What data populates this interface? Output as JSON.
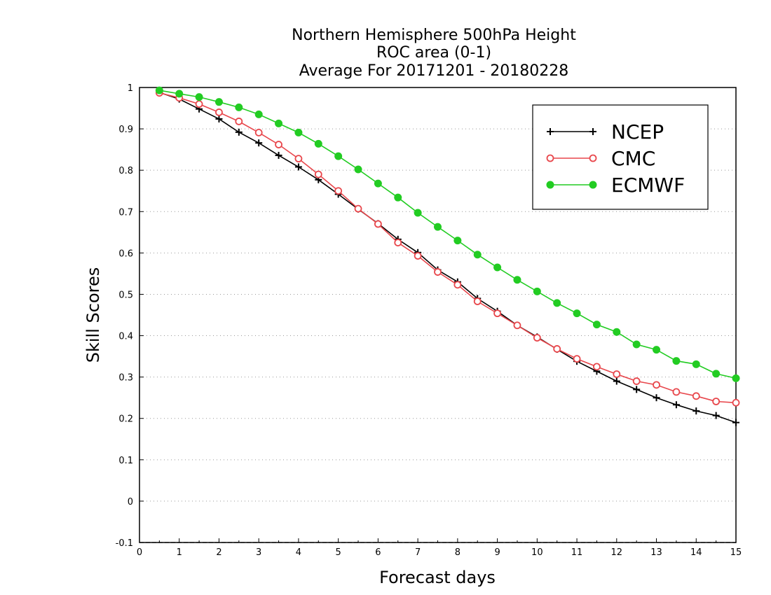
{
  "chart_data": {
    "type": "line",
    "title": [
      "Northern Hemisphere 500hPa Height",
      "ROC area (0-1)",
      "Average For 20171201 - 20180228"
    ],
    "xlabel": "Forecast days",
    "ylabel": "Skill Scores",
    "xlim": [
      0,
      15
    ],
    "ylim": [
      -0.1,
      1
    ],
    "xticks": [
      0,
      1,
      2,
      3,
      4,
      5,
      6,
      7,
      8,
      9,
      10,
      11,
      12,
      13,
      14,
      15
    ],
    "yticks": [
      -0.1,
      0,
      0.1,
      0.2,
      0.3,
      0.4,
      0.5,
      0.6,
      0.7,
      0.8,
      0.9,
      1
    ],
    "ytick_labels": [
      "-0.1",
      "0",
      "0.1",
      "0.2",
      "0.3",
      "0.4",
      "0.5",
      "0.6",
      "0.7",
      "0.8",
      "0.9",
      "1"
    ],
    "grid": "horizontal-dotted",
    "legend_position": "top-right",
    "x": [
      0.5,
      1,
      1.5,
      2,
      2.5,
      3,
      3.5,
      4,
      4.5,
      5,
      5.5,
      6,
      6.5,
      7,
      7.5,
      8,
      8.5,
      9,
      9.5,
      10,
      10.5,
      11,
      11.5,
      12,
      12.5,
      13,
      13.5,
      14,
      14.5,
      15
    ],
    "series": [
      {
        "name": "NCEP",
        "color": "#000000",
        "marker": "plus",
        "values": [
          0.988,
          0.972,
          0.948,
          0.924,
          0.892,
          0.866,
          0.836,
          0.808,
          0.777,
          0.742,
          0.706,
          0.671,
          0.633,
          0.601,
          0.559,
          0.53,
          0.49,
          0.459,
          0.425,
          0.397,
          0.367,
          0.338,
          0.314,
          0.29,
          0.27,
          0.25,
          0.233,
          0.218,
          0.207,
          0.19
        ]
      },
      {
        "name": "CMC",
        "color": "#e8474c",
        "marker": "open-circle",
        "values": [
          0.987,
          0.975,
          0.96,
          0.94,
          0.918,
          0.891,
          0.862,
          0.828,
          0.79,
          0.75,
          0.707,
          0.67,
          0.625,
          0.593,
          0.554,
          0.523,
          0.483,
          0.454,
          0.425,
          0.395,
          0.368,
          0.344,
          0.325,
          0.307,
          0.29,
          0.281,
          0.264,
          0.254,
          0.241,
          0.238
        ]
      },
      {
        "name": "ECMWF",
        "color": "#22cc22",
        "marker": "filled-circle",
        "values": [
          0.993,
          0.985,
          0.977,
          0.965,
          0.952,
          0.935,
          0.913,
          0.891,
          0.864,
          0.834,
          0.802,
          0.768,
          0.734,
          0.697,
          0.663,
          0.63,
          0.596,
          0.565,
          0.535,
          0.507,
          0.479,
          0.454,
          0.427,
          0.409,
          0.379,
          0.366,
          0.339,
          0.331,
          0.308,
          0.297
        ]
      }
    ]
  }
}
